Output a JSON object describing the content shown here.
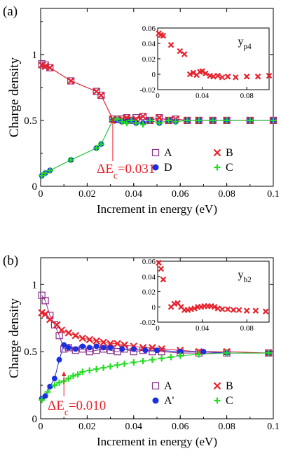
{
  "chart_data": [
    {
      "type": "scatter",
      "panel_label": "(a)",
      "xlabel": "Increment in energy (eV)",
      "ylabel": "Charge density",
      "xlim": [
        0,
        0.1
      ],
      "ylim": [
        0,
        1.35
      ],
      "xticks": [
        "0",
        "0.02",
        "0.04",
        "0.06",
        "0.08",
        "0.1"
      ],
      "yticks": [
        "0",
        "0.5",
        "1"
      ],
      "annotation": {
        "text": "ΔE_c=0.031",
        "x": 0.031
      },
      "legend": [
        "A",
        "B",
        "D",
        "C"
      ],
      "series": [
        {
          "name": "A",
          "marker": "open-square",
          "color": "#8b2f8b",
          "x": [
            0.0005,
            0.002,
            0.004,
            0.013,
            0.024,
            0.026,
            0.031,
            0.033,
            0.035,
            0.037,
            0.039,
            0.041,
            0.044,
            0.047,
            0.051,
            0.055,
            0.058,
            0.063,
            0.068,
            0.074,
            0.08,
            0.09,
            0.1
          ],
          "y": [
            0.93,
            0.92,
            0.9,
            0.8,
            0.72,
            0.69,
            0.51,
            0.51,
            0.51,
            0.52,
            0.5,
            0.52,
            0.53,
            0.5,
            0.52,
            0.5,
            0.51,
            0.5,
            0.5,
            0.5,
            0.5,
            0.5,
            0.5
          ]
        },
        {
          "name": "B",
          "marker": "x",
          "color": "#e8202a",
          "x": [
            0.0005,
            0.002,
            0.004,
            0.013,
            0.024,
            0.026,
            0.031,
            0.033,
            0.035,
            0.037,
            0.039,
            0.041,
            0.044,
            0.047,
            0.051,
            0.055,
            0.058,
            0.063,
            0.068,
            0.074,
            0.08,
            0.09,
            0.1
          ],
          "y": [
            0.92,
            0.91,
            0.9,
            0.8,
            0.72,
            0.69,
            0.51,
            0.5,
            0.51,
            0.52,
            0.5,
            0.51,
            0.53,
            0.5,
            0.52,
            0.5,
            0.51,
            0.5,
            0.5,
            0.5,
            0.5,
            0.5,
            0.5
          ]
        },
        {
          "name": "D",
          "marker": "filled-circle",
          "color": "#1a2fe0",
          "x": [
            0.0005,
            0.002,
            0.004,
            0.013,
            0.024,
            0.026,
            0.031,
            0.033,
            0.035,
            0.037,
            0.039,
            0.041,
            0.044,
            0.047,
            0.051,
            0.055,
            0.058,
            0.063,
            0.068,
            0.074,
            0.08,
            0.09,
            0.1
          ],
          "y": [
            0.08,
            0.1,
            0.12,
            0.2,
            0.29,
            0.32,
            0.5,
            0.5,
            0.49,
            0.49,
            0.5,
            0.48,
            0.48,
            0.5,
            0.48,
            0.5,
            0.49,
            0.5,
            0.5,
            0.5,
            0.5,
            0.5,
            0.5
          ]
        },
        {
          "name": "C",
          "marker": "plus",
          "color": "#22dd22",
          "x": [
            0.0005,
            0.002,
            0.004,
            0.013,
            0.024,
            0.026,
            0.031,
            0.033,
            0.035,
            0.037,
            0.039,
            0.041,
            0.044,
            0.047,
            0.051,
            0.055,
            0.058,
            0.063,
            0.068,
            0.074,
            0.08,
            0.09,
            0.1
          ],
          "y": [
            0.08,
            0.1,
            0.12,
            0.2,
            0.29,
            0.32,
            0.5,
            0.51,
            0.49,
            0.48,
            0.5,
            0.48,
            0.47,
            0.5,
            0.48,
            0.5,
            0.49,
            0.5,
            0.5,
            0.5,
            0.5,
            0.5,
            0.5
          ]
        }
      ],
      "inset": {
        "label": "y_p4",
        "xlim": [
          0,
          0.1
        ],
        "ylim": [
          -0.02,
          0.06
        ],
        "xticks": [
          "0",
          "0.04",
          "0.08"
        ],
        "yticks": [
          "-0.02",
          "0",
          "0.02",
          "0.04",
          "0.06"
        ],
        "series": [
          {
            "marker": "x",
            "color": "#e8202a",
            "x": [
              0.001,
              0.003,
              0.005,
              0.012,
              0.02,
              0.024,
              0.029,
              0.032,
              0.035,
              0.038,
              0.04,
              0.043,
              0.047,
              0.05,
              0.054,
              0.058,
              0.063,
              0.07,
              0.08,
              0.09,
              0.1
            ],
            "y": [
              0.053,
              0.051,
              0.05,
              0.038,
              0.03,
              0.026,
              0,
              0.002,
              -0.001,
              0.003,
              0.004,
              0.001,
              -0.002,
              -0.003,
              -0.002,
              -0.004,
              -0.003,
              -0.004,
              -0.003,
              -0.003,
              -0.002
            ]
          }
        ]
      }
    },
    {
      "type": "scatter",
      "panel_label": "(b)",
      "xlabel": "Increment in energy (eV)",
      "ylabel": "Charge density",
      "xlim": [
        0,
        0.1
      ],
      "ylim": [
        0,
        1.2
      ],
      "xticks": [
        "0",
        "0.02",
        "0.04",
        "0.06",
        "0.08",
        "0.1"
      ],
      "yticks": [
        "0",
        "0.5",
        "1"
      ],
      "annotation": {
        "text": "ΔE_c=0.010",
        "x": 0.01
      },
      "legend": [
        "A",
        "B",
        "A'",
        "C"
      ],
      "series": [
        {
          "name": "A",
          "marker": "open-square",
          "color": "#8b2f8b",
          "x": [
            0.0005,
            0.002,
            0.004,
            0.006,
            0.008,
            0.01,
            0.012,
            0.015,
            0.018,
            0.021,
            0.024,
            0.027,
            0.03,
            0.033,
            0.036,
            0.04,
            0.044,
            0.048,
            0.052,
            0.06,
            0.068,
            0.08,
            0.098
          ],
          "y": [
            0.92,
            0.88,
            0.77,
            0.7,
            0.62,
            0.52,
            0.53,
            0.51,
            0.52,
            0.5,
            0.51,
            0.52,
            0.51,
            0.5,
            0.52,
            0.5,
            0.51,
            0.5,
            0.5,
            0.49,
            0.49,
            0.49,
            0.49
          ]
        },
        {
          "name": "B",
          "marker": "x",
          "color": "#e8202a",
          "x": [
            0.0005,
            0.002,
            0.004,
            0.007,
            0.009,
            0.012,
            0.015,
            0.018,
            0.021,
            0.024,
            0.027,
            0.03,
            0.033,
            0.036,
            0.04,
            0.044,
            0.048,
            0.052,
            0.06,
            0.068,
            0.08,
            0.098
          ],
          "y": [
            0.79,
            0.78,
            0.74,
            0.7,
            0.66,
            0.64,
            0.62,
            0.6,
            0.59,
            0.58,
            0.57,
            0.56,
            0.56,
            0.55,
            0.54,
            0.53,
            0.53,
            0.52,
            0.51,
            0.5,
            0.5,
            0.49
          ]
        },
        {
          "name": "A'",
          "marker": "filled-circle",
          "color": "#1a2fe0",
          "x": [
            0.0005,
            0.002,
            0.004,
            0.006,
            0.008,
            0.01,
            0.012,
            0.015,
            0.018,
            0.021,
            0.024,
            0.027,
            0.03,
            0.035,
            0.04,
            0.045,
            0.05,
            0.06,
            0.07,
            0.08,
            0.098
          ],
          "y": [
            0.15,
            0.17,
            0.24,
            0.3,
            0.44,
            0.55,
            0.53,
            0.52,
            0.54,
            0.53,
            0.54,
            0.53,
            0.53,
            0.52,
            0.52,
            0.51,
            0.51,
            0.5,
            0.5,
            0.49,
            0.49
          ]
        },
        {
          "name": "C",
          "marker": "plus",
          "color": "#22dd22",
          "x": [
            0.0005,
            0.003,
            0.006,
            0.008,
            0.01,
            0.012,
            0.014,
            0.016,
            0.018,
            0.021,
            0.024,
            0.027,
            0.03,
            0.033,
            0.036,
            0.04,
            0.044,
            0.048,
            0.052,
            0.056,
            0.06,
            0.068,
            0.08,
            0.098
          ],
          "y": [
            0.14,
            0.2,
            0.25,
            0.27,
            0.28,
            0.3,
            0.32,
            0.33,
            0.35,
            0.36,
            0.37,
            0.38,
            0.39,
            0.4,
            0.41,
            0.42,
            0.43,
            0.44,
            0.45,
            0.46,
            0.47,
            0.48,
            0.49,
            0.49
          ]
        }
      ],
      "inset": {
        "label": "y_b2",
        "xlim": [
          0,
          0.1
        ],
        "ylim": [
          -0.02,
          0.06
        ],
        "xticks": [
          "0",
          "0.04",
          "0.08"
        ],
        "yticks": [
          "-0.02",
          "0",
          "0.02",
          "0.04",
          "0.06"
        ],
        "series": [
          {
            "marker": "x",
            "color": "#e8202a",
            "x": [
              0.001,
              0.003,
              0.005,
              0.012,
              0.015,
              0.018,
              0.021,
              0.024,
              0.027,
              0.03,
              0.033,
              0.036,
              0.039,
              0.042,
              0.045,
              0.048,
              0.051,
              0.054,
              0.058,
              0.063,
              0.068,
              0.073,
              0.08,
              0.088,
              0.097
            ],
            "y": [
              0.058,
              0.05,
              0.036,
              0,
              0.004,
              0.005,
              0,
              -0.004,
              -0.004,
              -0.003,
              -0.002,
              0,
              0,
              0.001,
              0.001,
              0.001,
              0,
              -0.002,
              -0.003,
              -0.003,
              -0.004,
              -0.004,
              -0.005,
              -0.005,
              -0.006
            ]
          }
        ]
      }
    }
  ]
}
